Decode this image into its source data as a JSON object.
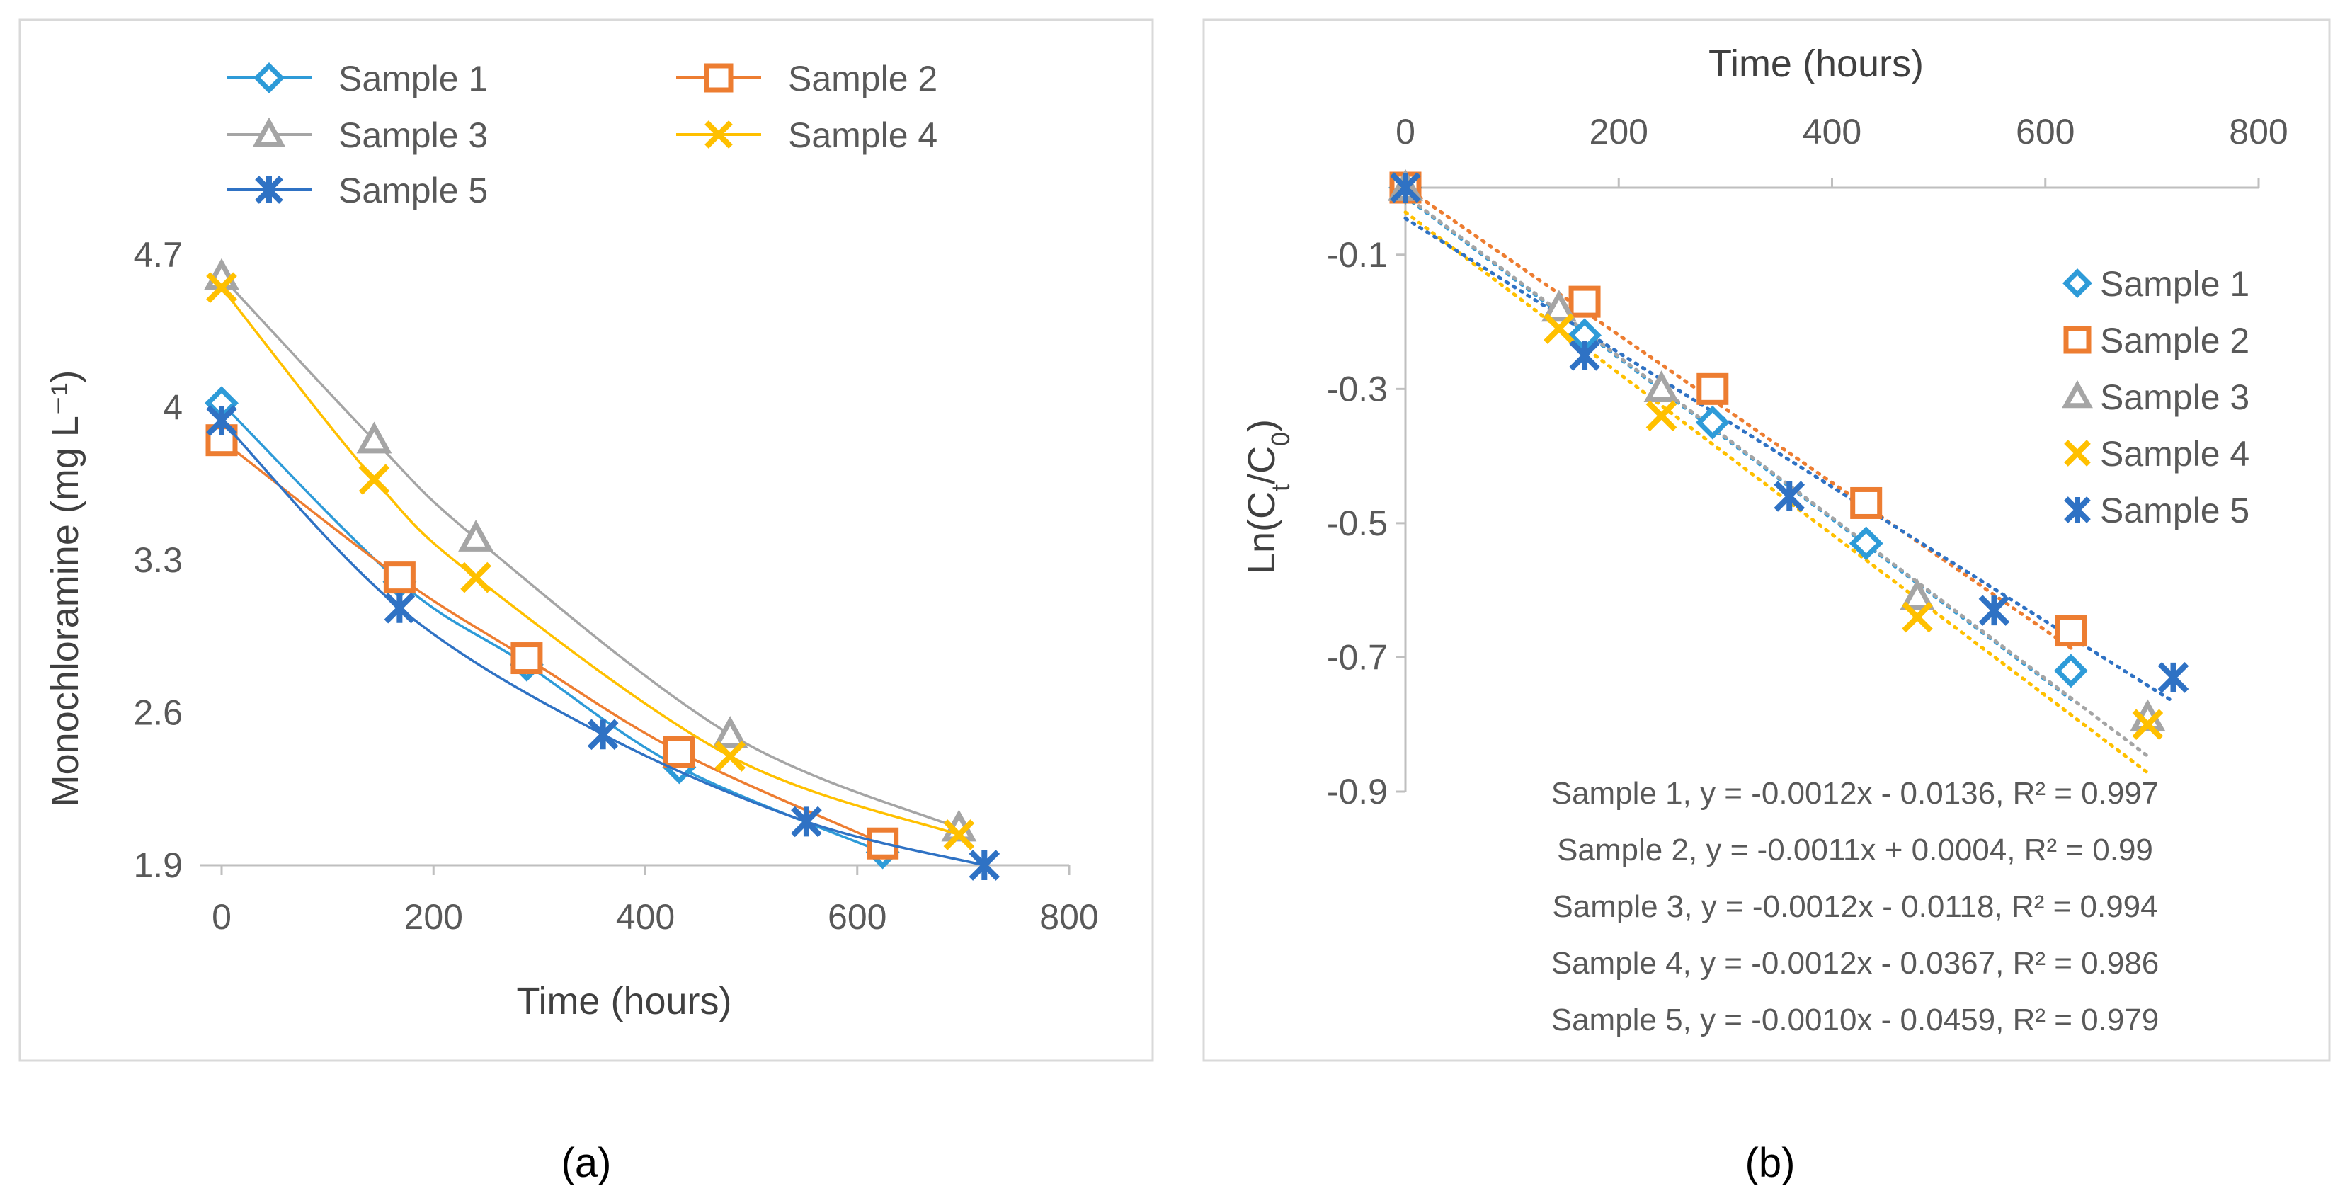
{
  "colors": {
    "Sample 1": "#2E9BD8",
    "Sample 2": "#ED7D31",
    "Sample 3": "#A5A5A5",
    "Sample 4": "#FFC000",
    "Sample 5": "#2F72C4",
    "axis": "#BFBFBF",
    "frame": "#D9D9D9"
  },
  "panel_labels": [
    "(a)",
    "(b)"
  ],
  "chart_data": [
    {
      "type": "line",
      "panel": "(a)",
      "xlabel": "Time (hours)",
      "ylabel": "Monochloramine (mg L⁻¹)",
      "xlim": [
        0,
        800
      ],
      "ylim": [
        1.9,
        4.7
      ],
      "xticks": [
        "0",
        "200",
        "400",
        "600",
        "800"
      ],
      "yticks": [
        "1.9",
        "2.6",
        "3.3",
        "4",
        "4.7"
      ],
      "legend_position": "top",
      "series": [
        {
          "name": "Sample 1",
          "marker": "diamond",
          "x": [
            0,
            168,
            288,
            432,
            624
          ],
          "y": [
            4.02,
            3.2,
            2.82,
            2.35,
            1.96
          ]
        },
        {
          "name": "Sample 2",
          "marker": "square",
          "x": [
            0,
            168,
            288,
            432,
            624
          ],
          "y": [
            3.85,
            3.22,
            2.85,
            2.42,
            2.0
          ]
        },
        {
          "name": "Sample 3",
          "marker": "triangle",
          "x": [
            0,
            144,
            240,
            480,
            696
          ],
          "y": [
            4.6,
            3.85,
            3.4,
            2.5,
            2.07
          ]
        },
        {
          "name": "Sample 4",
          "marker": "x",
          "x": [
            0,
            144,
            240,
            480,
            696
          ],
          "y": [
            4.55,
            3.67,
            3.22,
            2.4,
            2.04
          ]
        },
        {
          "name": "Sample 5",
          "marker": "star",
          "x": [
            0,
            168,
            360,
            552,
            720
          ],
          "y": [
            3.94,
            3.08,
            2.5,
            2.1,
            1.9
          ]
        }
      ]
    },
    {
      "type": "scatter",
      "panel": "(b)",
      "xlabel": "Time (hours)",
      "ylabel": "Ln(Ct/C0)",
      "xlim": [
        0,
        800
      ],
      "ylim": [
        -0.9,
        0
      ],
      "xticks": [
        "0",
        "200",
        "400",
        "600",
        "800"
      ],
      "yticks": [
        "-0.1",
        "-0.3",
        "-0.5",
        "-0.7",
        "-0.9"
      ],
      "legend_position": "right",
      "series": [
        {
          "name": "Sample 1",
          "marker": "diamond",
          "x": [
            0,
            168,
            288,
            432,
            624
          ],
          "y": [
            0,
            -0.22,
            -0.35,
            -0.53,
            -0.72
          ],
          "fit": {
            "slope": -0.0012,
            "intercept": -0.0136
          }
        },
        {
          "name": "Sample 2",
          "marker": "square",
          "x": [
            0,
            168,
            288,
            432,
            624
          ],
          "y": [
            0,
            -0.17,
            -0.3,
            -0.47,
            -0.66
          ],
          "fit": {
            "slope": -0.0011,
            "intercept": 0.0004
          }
        },
        {
          "name": "Sample 3",
          "marker": "triangle",
          "x": [
            0,
            144,
            240,
            480,
            696
          ],
          "y": [
            0,
            -0.18,
            -0.3,
            -0.61,
            -0.79
          ],
          "fit": {
            "slope": -0.0012,
            "intercept": -0.0118
          }
        },
        {
          "name": "Sample 4",
          "marker": "x",
          "x": [
            0,
            144,
            240,
            480,
            696
          ],
          "y": [
            0,
            -0.21,
            -0.34,
            -0.64,
            -0.8
          ],
          "fit": {
            "slope": -0.0012,
            "intercept": -0.0367
          }
        },
        {
          "name": "Sample 5",
          "marker": "star",
          "x": [
            0,
            168,
            360,
            552,
            720
          ],
          "y": [
            0,
            -0.25,
            -0.46,
            -0.63,
            -0.73
          ],
          "fit": {
            "slope": -0.001,
            "intercept": -0.0459
          }
        }
      ],
      "equations": [
        "Sample 1, y = -0.0012x - 0.0136, R² = 0.997",
        "Sample 2, y = -0.0011x + 0.0004, R² = 0.99",
        "Sample 3, y = -0.0012x - 0.0118, R² = 0.994",
        "Sample 4, y = -0.0012x - 0.0367, R² = 0.986",
        "Sample 5, y = -0.0010x - 0.0459, R² = 0.979"
      ]
    }
  ]
}
